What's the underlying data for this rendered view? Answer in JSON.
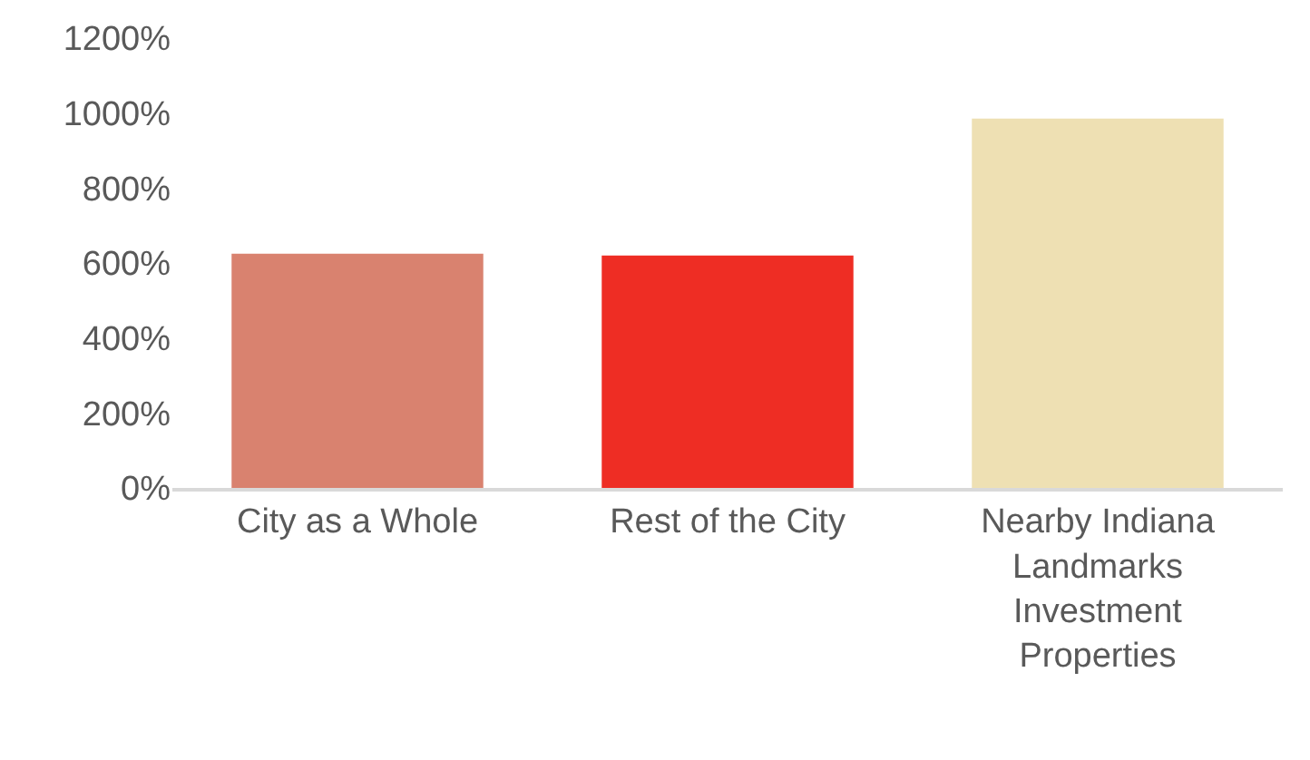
{
  "chart_data": {
    "type": "bar",
    "categories": [
      "City as a Whole",
      "Rest of the City",
      "Nearby Indiana Landmarks Investment Properties"
    ],
    "values": [
      625,
      620,
      985
    ],
    "colors": [
      "#d9826f",
      "#ee2d24",
      "#eee0b3"
    ],
    "yticks": [
      {
        "value": 0,
        "label": "0%"
      },
      {
        "value": 200,
        "label": "200%"
      },
      {
        "value": 400,
        "label": "400%"
      },
      {
        "value": 600,
        "label": "600%"
      },
      {
        "value": 800,
        "label": "800%"
      },
      {
        "value": 1000,
        "label": "1000%"
      },
      {
        "value": 1200,
        "label": "1200%"
      }
    ],
    "ylim": [
      0,
      1200
    ]
  }
}
